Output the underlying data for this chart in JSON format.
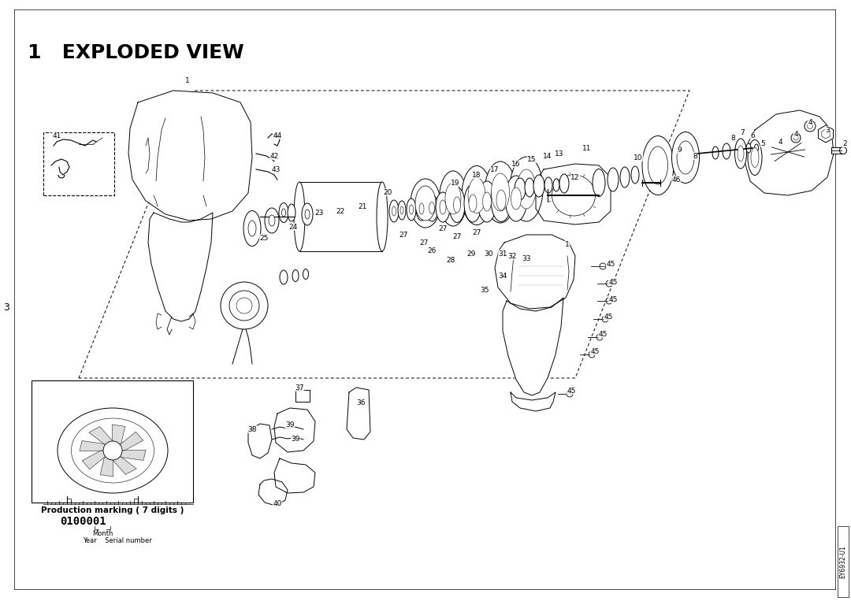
{
  "title": "1   EXPLODED VIEW",
  "title_fontsize": 18,
  "title_fontweight": "bold",
  "background_color": "#ffffff",
  "page_number": "3",
  "sidebar_text": "EY6932-U1",
  "production_text_lines": [
    "Production marking ( 7 digits )",
    "0100001",
    "Month",
    "Year    Serial number"
  ],
  "fig_width": 10.8,
  "fig_height": 7.63,
  "dpi": 100
}
